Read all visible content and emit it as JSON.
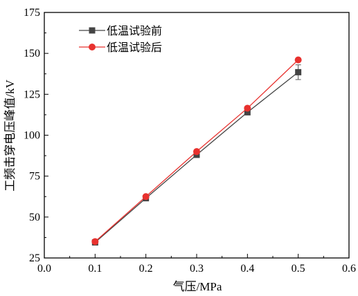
{
  "chart_data": {
    "type": "line",
    "title": "",
    "xlabel": "气压/MPa",
    "ylabel": "工频击穿电压峰值/kV",
    "xlim": [
      0.0,
      0.6
    ],
    "ylim": [
      25,
      175
    ],
    "xticks": [
      "0.0",
      "0.1",
      "0.2",
      "0.3",
      "0.4",
      "0.5",
      "0.6"
    ],
    "yticks": [
      "25",
      "50",
      "75",
      "100",
      "125",
      "150",
      "175"
    ],
    "grid": false,
    "legend_position": "top-left",
    "x": [
      0.1,
      0.2,
      0.3,
      0.4,
      0.5
    ],
    "series": [
      {
        "name": "低温试验前",
        "values": [
          34.5,
          61.5,
          88.0,
          114.0,
          138.5
        ],
        "error": [
          0,
          0,
          0,
          0,
          4.5
        ],
        "color": "#444444",
        "marker": "square"
      },
      {
        "name": "低温试验后",
        "values": [
          35.0,
          62.5,
          90.0,
          116.5,
          146.0
        ],
        "error": [
          0,
          0,
          0,
          0,
          0
        ],
        "color": "#e8312e",
        "marker": "circle"
      }
    ]
  }
}
